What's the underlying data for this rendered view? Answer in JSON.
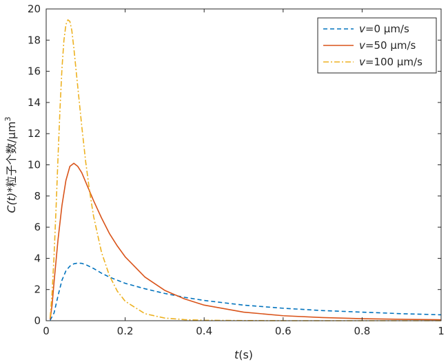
{
  "chart_data": {
    "type": "line",
    "xlabel_var": "t",
    "xlabel_unit": "(s)",
    "ylabel_var": "C(t)",
    "ylabel_rest": "*粒子个数/μm",
    "ylabel_sup": "3",
    "xlim": [
      0,
      1
    ],
    "ylim": [
      0,
      20
    ],
    "x_ticks": [
      0,
      0.2,
      0.4,
      0.6,
      0.8,
      1
    ],
    "x_tick_labels": [
      "0",
      "0.2",
      "0.4",
      "0.6",
      "0.8",
      "1"
    ],
    "y_ticks": [
      0,
      2,
      4,
      6,
      8,
      10,
      12,
      14,
      16,
      18,
      20
    ],
    "y_tick_labels": [
      "0",
      "2",
      "4",
      "6",
      "8",
      "10",
      "12",
      "14",
      "16",
      "18",
      "20"
    ],
    "legend_position": "top-right",
    "series": [
      {
        "var": "v",
        "label_rest": "=0 μm/s",
        "color": "#0072BD",
        "dash": "6,4",
        "x": [
          0.01,
          0.02,
          0.03,
          0.04,
          0.05,
          0.06,
          0.07,
          0.08,
          0.09,
          0.1,
          0.12,
          0.14,
          0.16,
          0.18,
          0.2,
          0.25,
          0.3,
          0.35,
          0.4,
          0.5,
          0.6,
          0.7,
          0.8,
          0.9,
          1.0
        ],
        "y": [
          0.03,
          0.5,
          1.6,
          2.6,
          3.2,
          3.5,
          3.65,
          3.7,
          3.68,
          3.6,
          3.35,
          3.05,
          2.8,
          2.6,
          2.4,
          2.05,
          1.75,
          1.5,
          1.3,
          1.0,
          0.8,
          0.65,
          0.55,
          0.45,
          0.38
        ]
      },
      {
        "var": "v",
        "label_rest": "=50 μm/s",
        "color": "#D95319",
        "dash": "",
        "x": [
          0.01,
          0.015,
          0.02,
          0.03,
          0.04,
          0.05,
          0.06,
          0.07,
          0.08,
          0.09,
          0.1,
          0.12,
          0.14,
          0.16,
          0.18,
          0.2,
          0.25,
          0.3,
          0.35,
          0.4,
          0.5,
          0.6,
          0.7,
          0.8,
          0.9,
          1.0
        ],
        "y": [
          0.1,
          1.0,
          2.5,
          5.2,
          7.4,
          9.0,
          9.9,
          10.1,
          9.9,
          9.5,
          8.9,
          7.7,
          6.6,
          5.6,
          4.8,
          4.1,
          2.8,
          1.95,
          1.4,
          1.0,
          0.55,
          0.32,
          0.2,
          0.13,
          0.09,
          0.06
        ]
      },
      {
        "var": "v",
        "label_rest": "=100 μm/s",
        "color": "#EDB120",
        "dash": "8,3,2,3",
        "x": [
          0.01,
          0.015,
          0.02,
          0.025,
          0.03,
          0.035,
          0.04,
          0.045,
          0.05,
          0.055,
          0.06,
          0.065,
          0.07,
          0.08,
          0.09,
          0.1,
          0.11,
          0.12,
          0.14,
          0.16,
          0.18,
          0.2,
          0.25,
          0.3,
          0.35,
          0.4,
          0.5,
          0.6,
          0.7,
          0.8,
          0.9,
          1.0
        ],
        "y": [
          0.2,
          1.8,
          4.2,
          7.2,
          10.5,
          13.6,
          16.2,
          18.0,
          19.0,
          19.3,
          19.2,
          18.6,
          17.5,
          15.0,
          12.5,
          10.2,
          8.3,
          6.7,
          4.4,
          2.9,
          1.9,
          1.25,
          0.45,
          0.17,
          0.07,
          0.03,
          0.01,
          0.0,
          0.0,
          0.0,
          0.0,
          0.0
        ]
      }
    ]
  }
}
